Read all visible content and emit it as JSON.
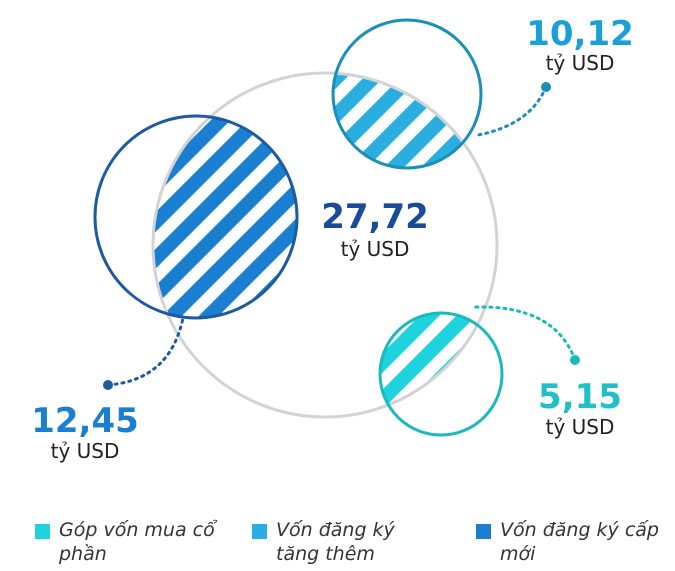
{
  "total": {
    "value": "27,72",
    "unit": "tỷ USD"
  },
  "parts": [
    {
      "value": "12,45",
      "unit": "tỷ USD"
    },
    {
      "value": "10,12",
      "unit": "tỷ USD"
    },
    {
      "value": "5,15",
      "unit": "tỷ USD"
    }
  ],
  "legend": [
    "Góp vốn mua cổ phần",
    "Vốn đăng ký tăng thêm",
    "Vốn đăng ký cấp mới"
  ]
}
